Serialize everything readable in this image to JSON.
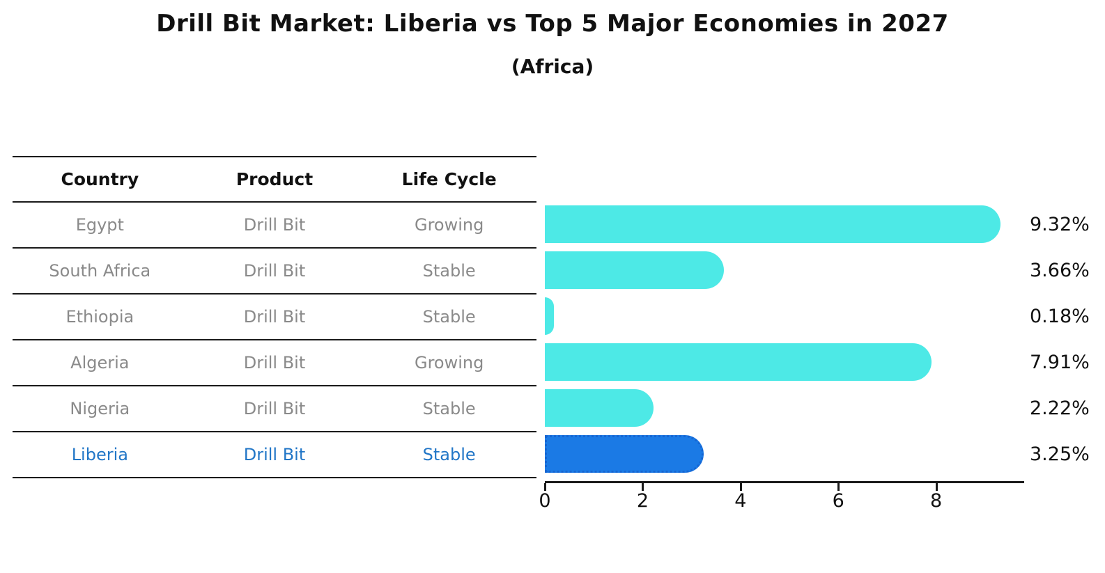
{
  "title": "Drill Bit Market: Liberia vs Top 5 Major Economies in 2027",
  "subtitle": "(Africa)",
  "table": {
    "headers": [
      "Country",
      "Product",
      "Life Cycle"
    ],
    "rows": [
      {
        "country": "Egypt",
        "product": "Drill Bit",
        "life_cycle": "Growing",
        "highlight": false
      },
      {
        "country": "South Africa",
        "product": "Drill Bit",
        "life_cycle": "Stable",
        "highlight": false
      },
      {
        "country": "Ethiopia",
        "product": "Drill Bit",
        "life_cycle": "Stable",
        "highlight": false
      },
      {
        "country": "Algeria",
        "product": "Drill Bit",
        "life_cycle": "Growing",
        "highlight": false
      },
      {
        "country": "Nigeria",
        "product": "Drill Bit",
        "life_cycle": "Stable",
        "highlight": false
      },
      {
        "country": "Liberia",
        "product": "Drill Bit",
        "life_cycle": "Stable",
        "highlight": true
      }
    ]
  },
  "chart_data": {
    "type": "bar",
    "orientation": "horizontal",
    "title": "Drill Bit Market: Liberia vs Top 5 Major Economies in 2027",
    "subtitle": "(Africa)",
    "categories": [
      "Egypt",
      "South Africa",
      "Ethiopia",
      "Algeria",
      "Nigeria",
      "Liberia"
    ],
    "values": [
      9.32,
      3.66,
      0.18,
      7.91,
      2.22,
      3.25
    ],
    "value_labels": [
      "9.32%",
      "3.66%",
      "0.18%",
      "7.91%",
      "2.22%",
      "3.25%"
    ],
    "unit": "%",
    "highlight_index": 5,
    "highlight_category": "Liberia",
    "x_ticks": [
      0,
      2,
      4,
      6,
      8
    ],
    "xlim": [
      0,
      9.8
    ],
    "grid": false,
    "legend": false,
    "bar_color": "#4DE9E6",
    "highlight_bar_color": "#1B7AE5"
  },
  "colors": {
    "bar": "#4DE9E6",
    "highlight_bar": "#1B7AE5",
    "highlight_border": "#1565D2",
    "highlight_text": "#2176C7",
    "muted_text": "#8A8A8A",
    "heading_text": "#111111",
    "line": "#1A1A1A"
  }
}
